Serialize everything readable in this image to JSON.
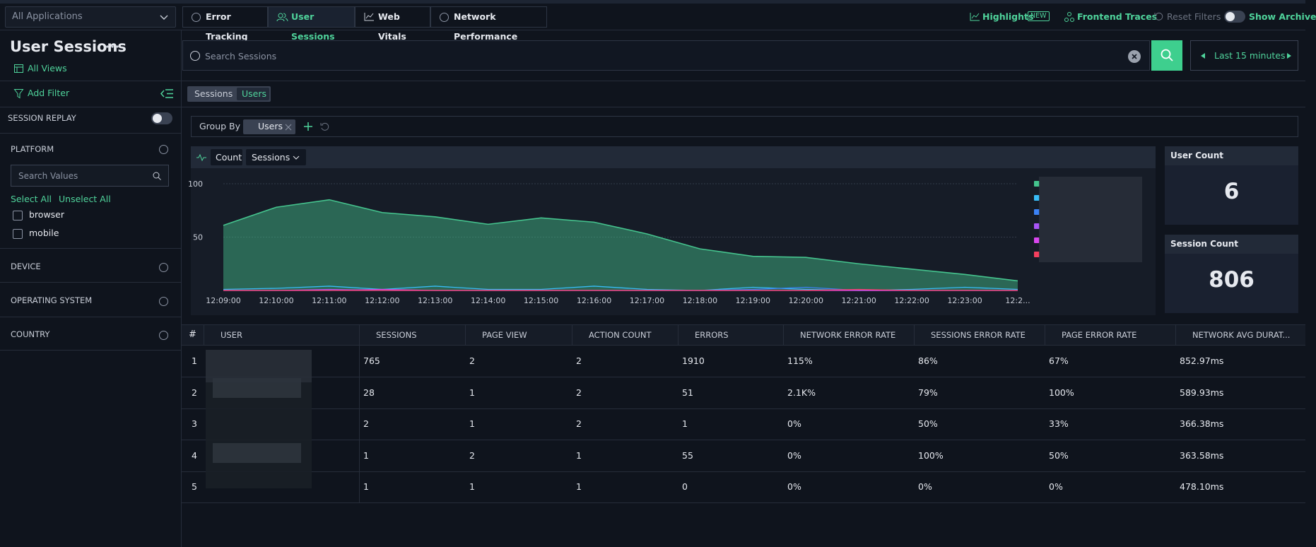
{
  "app_select": "All Applications",
  "tabs": [
    "Error Tracking",
    "User Sessions",
    "Web Vitals",
    "Network Performance"
  ],
  "top_right": {
    "highlights": "Highlights",
    "new_badge": "NEW",
    "frontend_traces": "Frontend Traces",
    "reset_filters": "Reset Filters",
    "show_archive": "Show Archive"
  },
  "sidebar": {
    "title": "User Sessions",
    "all_views": "All Views",
    "add_filter": "Add Filter",
    "session_replay": "SESSION REPLAY",
    "platform": "PLATFORM",
    "search_placeholder": "Search Values",
    "select_all": "Select All",
    "unselect_all": "Unselect All",
    "options": [
      "browser",
      "mobile"
    ],
    "sections": [
      "DEVICE",
      "OPERATING SYSTEM",
      "COUNTRY"
    ]
  },
  "search": {
    "placeholder": "Search Sessions",
    "time_range": "Last 15 minutes"
  },
  "view_toggle": [
    "Sessions",
    "Users"
  ],
  "group_by": {
    "label": "Group By",
    "chip": "Users"
  },
  "chart_controls": [
    "Count",
    "Sessions"
  ],
  "chart_data": {
    "type": "area",
    "categories": [
      "12:09:00",
      "12:10:00",
      "12:11:00",
      "12:12:00",
      "12:13:00",
      "12:14:00",
      "12:15:00",
      "12:16:00",
      "12:17:00",
      "12:18:00",
      "12:19:00",
      "12:20:00",
      "12:21:00",
      "12:22:00",
      "12:23:00",
      "12:2..."
    ],
    "series": [
      {
        "color": "#45c48e",
        "values": [
          61,
          78,
          85,
          73,
          69,
          62,
          68,
          64,
          53,
          39,
          32,
          31,
          25,
          20,
          15,
          9
        ]
      },
      {
        "color": "#38bdf8",
        "values": [
          1,
          2,
          4,
          1,
          4,
          1,
          1,
          4,
          1,
          0,
          3,
          1,
          0,
          1,
          3,
          1
        ]
      },
      {
        "color": "#3b82f6",
        "values": [
          0,
          0,
          0,
          0,
          0,
          0,
          0,
          0,
          0,
          0,
          1,
          3,
          0,
          0,
          0,
          0
        ]
      },
      {
        "color": "#a855f7",
        "values": [
          0,
          0,
          1,
          0,
          0,
          0,
          0,
          0,
          0,
          0,
          0,
          0,
          0,
          0,
          0,
          0
        ]
      },
      {
        "color": "#d946ef",
        "values": [
          0,
          0,
          0,
          1,
          0,
          0,
          0,
          0,
          0,
          0,
          0,
          0,
          0,
          0,
          0,
          0
        ]
      },
      {
        "color": "#f43f5e",
        "values": [
          0,
          0,
          0,
          0,
          0,
          0,
          0,
          0,
          0,
          0,
          0,
          0,
          1,
          0,
          0,
          0
        ]
      }
    ],
    "ylim": [
      0,
      100
    ],
    "yticks": [
      50,
      100
    ],
    "grid": true
  },
  "cards": [
    {
      "title": "User Count",
      "value": "6"
    },
    {
      "title": "Session Count",
      "value": "806"
    }
  ],
  "table": {
    "headers": [
      "#",
      "USER",
      "SESSIONS",
      "PAGE VIEW",
      "ACTION COUNT",
      "ERRORS",
      "NETWORK ERROR RATE",
      "SESSIONS ERROR RATE",
      "PAGE ERROR RATE",
      "NETWORK AVG DURAT..."
    ],
    "rows": [
      [
        "1",
        "765",
        "2",
        "2",
        "1910",
        "115%",
        "86%",
        "67%",
        "852.97ms"
      ],
      [
        "2",
        "28",
        "1",
        "2",
        "51",
        "2.1K%",
        "79%",
        "100%",
        "589.93ms"
      ],
      [
        "3",
        "2",
        "1",
        "2",
        "1",
        "0%",
        "50%",
        "33%",
        "366.38ms"
      ],
      [
        "4",
        "1",
        "2",
        "1",
        "55",
        "0%",
        "100%",
        "50%",
        "363.58ms"
      ],
      [
        "5",
        "1",
        "1",
        "1",
        "0",
        "0%",
        "0%",
        "0%",
        "478.10ms"
      ]
    ]
  }
}
